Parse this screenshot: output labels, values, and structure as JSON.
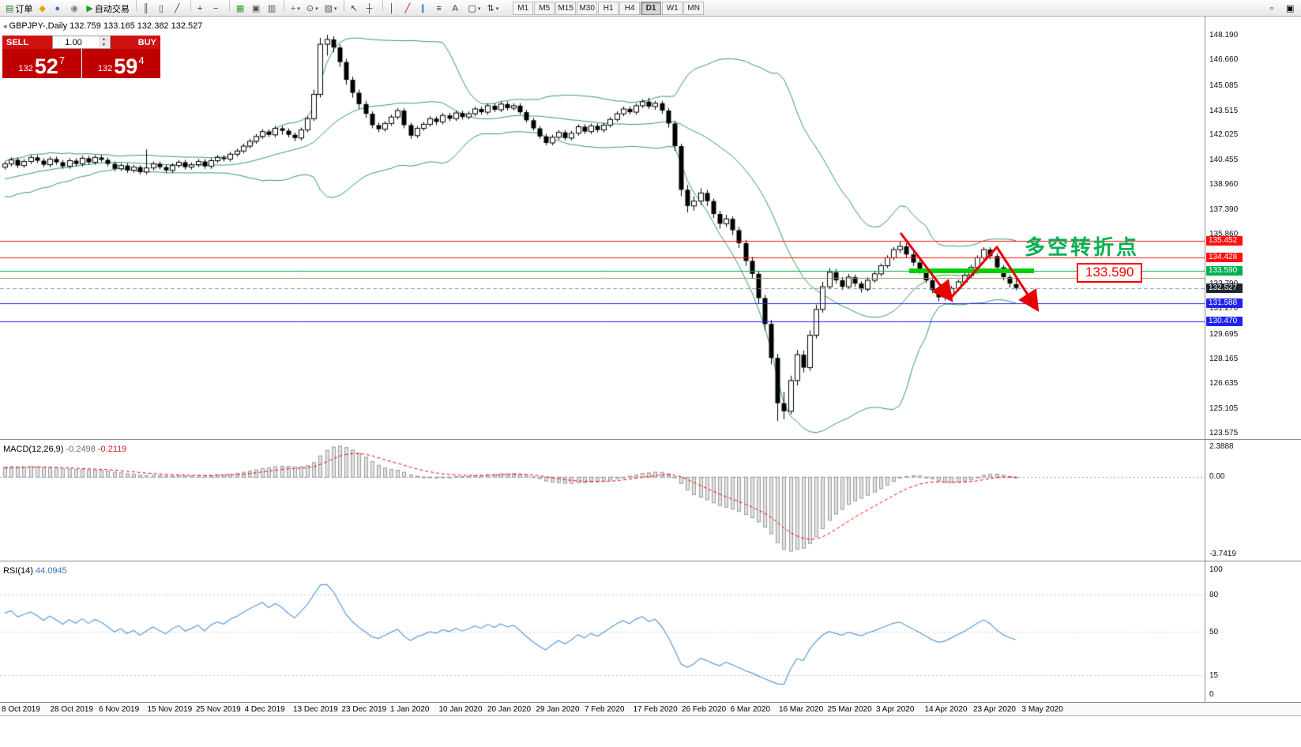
{
  "toolbar": {
    "groups": [
      {
        "items": [
          {
            "name": "new-order-button",
            "glyph": "▤",
            "color": "#2f7d32",
            "label": "订单"
          },
          {
            "name": "metaquotes-button",
            "glyph": "◆",
            "color": "#e2a400"
          },
          {
            "name": "market-watch-button",
            "glyph": "●",
            "color": "#3a6fc4"
          },
          {
            "name": "community-button",
            "glyph": "◉",
            "color": "#7a7a7a"
          },
          {
            "name": "autotrading-button",
            "glyph": "▶",
            "color": "#1d9e1d",
            "label": "自动交易"
          }
        ]
      },
      {
        "items": [
          {
            "name": "bar-chart-button",
            "glyph": "║",
            "color": "#444444"
          },
          {
            "name": "candlestick-chart-button",
            "glyph": "▯",
            "color": "#444444"
          },
          {
            "name": "line-chart-button",
            "glyph": "╱",
            "color": "#444444"
          }
        ]
      },
      {
        "items": [
          {
            "name": "zoom-in-button",
            "glyph": "+",
            "color": "#333333"
          },
          {
            "name": "zoom-out-button",
            "glyph": "−",
            "color": "#333333"
          }
        ]
      },
      {
        "items": [
          {
            "name": "tile-windows-button",
            "glyph": "▦",
            "color": "#2f9e2f"
          },
          {
            "name": "cascade-windows-button",
            "glyph": "▣",
            "color": "#555555"
          },
          {
            "name": "arrange-windows-button",
            "glyph": "▥",
            "color": "#555555"
          }
        ]
      },
      {
        "items": [
          {
            "name": "indicators-button",
            "glyph": "+",
            "color": "#1a9c1a",
            "caret": true
          },
          {
            "name": "periods-button",
            "glyph": "⊙",
            "color": "#555555",
            "caret": true
          },
          {
            "name": "templates-button",
            "glyph": "▨",
            "color": "#555555",
            "caret": true
          }
        ]
      },
      {
        "items": [
          {
            "name": "cursor-button",
            "glyph": "↖",
            "color": "#333333"
          },
          {
            "name": "crosshair-button",
            "glyph": "┼",
            "color": "#333333"
          }
        ]
      },
      {
        "items": [
          {
            "name": "vertical-line-button",
            "glyph": "│",
            "color": "#333333"
          },
          {
            "name": "trendline-button",
            "glyph": "╱",
            "color": "#cc0000"
          },
          {
            "name": "channel-button",
            "glyph": "∥",
            "color": "#0066cc"
          },
          {
            "name": "fibonacci-button",
            "glyph": "≡",
            "color": "#333333"
          },
          {
            "name": "text-button",
            "glyph": "A",
            "color": "#333333"
          },
          {
            "name": "shapes-button",
            "glyph": "▢",
            "color": "#333333",
            "caret": true
          },
          {
            "name": "arrows-button",
            "glyph": "⇅",
            "color": "#333333",
            "caret": true
          }
        ]
      }
    ],
    "timeframes": [
      "M1",
      "M5",
      "M15",
      "M30",
      "H1",
      "H4",
      "D1",
      "W1",
      "MN"
    ],
    "active_timeframe": "D1",
    "window_buttons": [
      {
        "name": "chart-minimize-button",
        "glyph": "▫"
      },
      {
        "name": "chart-restore-button",
        "glyph": "▣"
      }
    ]
  },
  "main_chart": {
    "header_icon": "◂",
    "symbol_header": "GBPJPY-,Daily 132.759 133.165 132.382 132.527",
    "trade_widget": {
      "sell_label": "SELL",
      "buy_label": "BUY",
      "volume": "1.00",
      "volume_up_glyph": "▲",
      "volume_down_glyph": "▼",
      "sell_price_small": "132",
      "sell_price_big": "52",
      "sell_price_sup": "7",
      "buy_price_small": "132",
      "buy_price_big": "59",
      "buy_price_sup": "4"
    },
    "annotation_text": "多空转折点",
    "support_callout": "133.590",
    "axis_values": [
      "148.190",
      "146.660",
      "145.085",
      "143.515",
      "142.025",
      "140.455",
      "138.960",
      "137.390",
      "135.860",
      "134.290",
      "132.790",
      "131.270",
      "129.695",
      "128.165",
      "126.635",
      "125.105",
      "123.575"
    ],
    "price_badges": [
      {
        "value": "135.452",
        "price": 135.452,
        "color": "#ff1010"
      },
      {
        "value": "134.428",
        "price": 134.428,
        "color": "#ff1010"
      },
      {
        "value": "133.590",
        "price": 133.59,
        "color": "#00b050"
      },
      {
        "value": "132.527",
        "price": 132.527,
        "color": "#20242c"
      },
      {
        "value": "131.588",
        "price": 131.588,
        "color": "#2222ee"
      },
      {
        "value": "130.470",
        "price": 130.47,
        "color": "#2222ee"
      }
    ]
  },
  "macd_panel": {
    "label": "MACD(12,26,9)",
    "value_main": "-0.2498",
    "value_signal": "-0.2119",
    "axis_top": "2.3888",
    "axis_zero": "0.00",
    "axis_bottom": "-3.7419"
  },
  "rsi_panel": {
    "label": "RSI(14)",
    "value": "44.0945",
    "axis_values": [
      "100",
      "80",
      "50",
      "15",
      "0"
    ],
    "levels": [
      80,
      50,
      15
    ]
  },
  "date_axis": [
    "8 Oct 2019",
    "28 Oct 2019",
    "6 Nov 2019",
    "15 Nov 2019",
    "25 Nov 2019",
    "4 Dec 2019",
    "13 Dec 2019",
    "23 Dec 2019",
    "1 Jan 2020",
    "10 Jan 2020",
    "20 Jan 2020",
    "29 Jan 2020",
    "7 Feb 2020",
    "17 Feb 2020",
    "26 Feb 2020",
    "6 Mar 2020",
    "16 Mar 2020",
    "25 Mar 2020",
    "3 Apr 2020",
    "14 Apr 2020",
    "23 Apr 2020",
    "3 May 2020"
  ],
  "chart_data": {
    "type": "candlestick",
    "symbol": "GBPJPY",
    "timeframe": "Daily",
    "price_range": [
      123.575,
      148.19
    ],
    "bollinger": {
      "period": 20,
      "deviation": 2,
      "color": "#2e9e5b"
    },
    "macd": {
      "fast": 12,
      "slow": 26,
      "signal": 9
    },
    "rsi": {
      "period": 14
    },
    "hlines": [
      {
        "price": 135.452,
        "color": "#ff1010",
        "style": "solid",
        "width": 1
      },
      {
        "price": 134.428,
        "color": "#ff1010",
        "style": "solid",
        "width": 1
      },
      {
        "price": 133.59,
        "color": "#00b050",
        "style": "solid",
        "width": 1
      },
      {
        "price": 133.155,
        "color": "#9a9a60",
        "style": "solid",
        "width": 1
      },
      {
        "price": 132.527,
        "color": "#8a98a6",
        "style": "dash",
        "width": 1
      },
      {
        "price": 131.588,
        "color": "#2222ee",
        "style": "solid",
        "width": 1
      },
      {
        "price": 130.47,
        "color": "#2222ee",
        "style": "solid",
        "width": 1
      }
    ],
    "candles": [
      [
        140.0,
        140.35,
        139.85,
        140.2
      ],
      [
        140.2,
        140.6,
        140.05,
        140.45
      ],
      [
        140.45,
        140.6,
        139.95,
        140.1
      ],
      [
        140.1,
        140.5,
        139.95,
        140.35
      ],
      [
        140.35,
        140.75,
        140.2,
        140.6
      ],
      [
        140.6,
        140.75,
        140.25,
        140.4
      ],
      [
        140.4,
        140.55,
        140.0,
        140.15
      ],
      [
        140.15,
        140.65,
        140.0,
        140.5
      ],
      [
        140.5,
        140.65,
        140.15,
        140.3
      ],
      [
        140.3,
        140.45,
        139.9,
        140.05
      ],
      [
        140.05,
        140.55,
        139.9,
        140.4
      ],
      [
        140.4,
        140.55,
        140.05,
        140.2
      ],
      [
        140.2,
        140.7,
        140.05,
        140.55
      ],
      [
        140.55,
        140.7,
        140.15,
        140.3
      ],
      [
        140.3,
        140.75,
        140.15,
        140.6
      ],
      [
        140.6,
        140.75,
        140.3,
        140.45
      ],
      [
        140.45,
        140.6,
        140.05,
        140.2
      ],
      [
        140.2,
        140.35,
        139.75,
        139.9
      ],
      [
        139.9,
        140.25,
        139.75,
        140.1
      ],
      [
        140.1,
        140.25,
        139.65,
        139.8
      ],
      [
        139.8,
        140.15,
        139.65,
        140.0
      ],
      [
        140.0,
        140.1,
        139.55,
        139.7
      ],
      [
        139.7,
        141.1,
        139.55,
        139.95
      ],
      [
        139.95,
        140.35,
        139.8,
        140.2
      ],
      [
        140.2,
        140.35,
        139.85,
        140.0
      ],
      [
        140.0,
        140.15,
        139.65,
        139.8
      ],
      [
        139.8,
        140.25,
        139.65,
        140.1
      ],
      [
        140.1,
        140.45,
        139.95,
        140.3
      ],
      [
        140.3,
        140.45,
        139.85,
        140.0
      ],
      [
        140.0,
        140.3,
        139.85,
        140.15
      ],
      [
        140.15,
        140.5,
        140.0,
        140.35
      ],
      [
        140.35,
        140.5,
        139.9,
        140.05
      ],
      [
        140.05,
        140.55,
        139.9,
        140.4
      ],
      [
        140.4,
        140.75,
        140.25,
        140.6
      ],
      [
        140.6,
        140.75,
        140.35,
        140.5
      ],
      [
        140.5,
        140.95,
        140.35,
        140.8
      ],
      [
        140.8,
        141.15,
        140.65,
        141.0
      ],
      [
        141.0,
        141.45,
        140.85,
        141.3
      ],
      [
        141.3,
        141.75,
        141.15,
        141.6
      ],
      [
        141.6,
        142.05,
        141.45,
        141.9
      ],
      [
        141.9,
        142.35,
        141.75,
        142.2
      ],
      [
        142.2,
        142.35,
        141.85,
        142.0
      ],
      [
        142.0,
        142.55,
        141.85,
        142.4
      ],
      [
        142.4,
        142.55,
        142.0,
        142.25
      ],
      [
        142.25,
        142.4,
        141.85,
        142.0
      ],
      [
        142.0,
        142.15,
        141.6,
        141.8
      ],
      [
        141.8,
        142.45,
        141.65,
        142.3
      ],
      [
        142.3,
        143.15,
        142.15,
        143.0
      ],
      [
        143.0,
        144.8,
        142.85,
        144.5
      ],
      [
        144.5,
        148.0,
        144.3,
        147.6
      ],
      [
        147.6,
        148.19,
        146.9,
        147.9
      ],
      [
        147.9,
        148.1,
        147.1,
        147.4
      ],
      [
        147.4,
        147.6,
        146.2,
        146.5
      ],
      [
        146.5,
        146.7,
        145.1,
        145.4
      ],
      [
        145.4,
        145.6,
        144.3,
        144.6
      ],
      [
        144.6,
        144.8,
        143.6,
        143.9
      ],
      [
        143.9,
        144.1,
        143.05,
        143.3
      ],
      [
        143.3,
        143.45,
        142.4,
        142.6
      ],
      [
        142.6,
        142.75,
        142.15,
        142.35
      ],
      [
        142.35,
        142.85,
        142.2,
        142.7
      ],
      [
        142.7,
        143.25,
        142.55,
        143.1
      ],
      [
        143.1,
        143.65,
        142.95,
        143.5
      ],
      [
        143.5,
        143.65,
        142.4,
        142.6
      ],
      [
        142.6,
        142.75,
        141.75,
        141.95
      ],
      [
        141.95,
        142.55,
        141.8,
        142.4
      ],
      [
        142.4,
        142.8,
        142.25,
        142.65
      ],
      [
        142.65,
        143.15,
        142.5,
        143.0
      ],
      [
        143.0,
        143.15,
        142.6,
        142.8
      ],
      [
        142.8,
        143.35,
        142.65,
        143.2
      ],
      [
        143.2,
        143.35,
        142.85,
        143.0
      ],
      [
        143.0,
        143.5,
        142.85,
        143.35
      ],
      [
        143.35,
        143.5,
        142.95,
        143.1
      ],
      [
        143.1,
        143.45,
        142.95,
        143.3
      ],
      [
        143.3,
        143.75,
        143.15,
        143.6
      ],
      [
        143.6,
        143.75,
        143.25,
        143.4
      ],
      [
        143.4,
        143.95,
        143.25,
        143.8
      ],
      [
        143.8,
        143.95,
        143.4,
        143.55
      ],
      [
        143.55,
        144.05,
        143.4,
        143.9
      ],
      [
        143.9,
        144.05,
        143.5,
        143.65
      ],
      [
        143.65,
        143.95,
        143.5,
        143.8
      ],
      [
        143.8,
        143.95,
        143.25,
        143.4
      ],
      [
        143.4,
        143.55,
        142.75,
        142.9
      ],
      [
        142.9,
        143.05,
        142.25,
        142.4
      ],
      [
        142.4,
        142.55,
        141.75,
        141.9
      ],
      [
        141.9,
        142.05,
        141.35,
        141.5
      ],
      [
        141.5,
        142.0,
        141.35,
        141.85
      ],
      [
        141.85,
        142.3,
        141.7,
        142.15
      ],
      [
        142.15,
        142.3,
        141.65,
        141.8
      ],
      [
        141.8,
        142.25,
        141.65,
        142.1
      ],
      [
        142.1,
        142.65,
        141.95,
        142.5
      ],
      [
        142.5,
        142.65,
        142.05,
        142.2
      ],
      [
        142.2,
        142.7,
        142.05,
        142.55
      ],
      [
        142.55,
        142.7,
        142.15,
        142.3
      ],
      [
        142.3,
        142.75,
        142.15,
        142.6
      ],
      [
        142.6,
        143.1,
        142.45,
        142.95
      ],
      [
        142.95,
        143.45,
        142.8,
        143.3
      ],
      [
        143.3,
        143.75,
        143.15,
        143.6
      ],
      [
        143.6,
        143.75,
        143.25,
        143.4
      ],
      [
        143.4,
        143.95,
        143.25,
        143.8
      ],
      [
        143.8,
        144.2,
        143.65,
        144.05
      ],
      [
        144.05,
        144.3,
        143.6,
        143.75
      ],
      [
        143.75,
        144.1,
        143.55,
        143.95
      ],
      [
        143.95,
        144.1,
        143.3,
        143.5
      ],
      [
        143.5,
        143.65,
        142.45,
        142.7
      ],
      [
        142.7,
        142.85,
        141.0,
        141.3
      ],
      [
        141.3,
        141.45,
        138.2,
        138.6
      ],
      [
        138.6,
        138.9,
        137.2,
        137.6
      ],
      [
        137.6,
        138.2,
        137.3,
        137.9
      ],
      [
        137.9,
        138.7,
        137.65,
        138.4
      ],
      [
        138.4,
        138.6,
        137.6,
        137.9
      ],
      [
        137.9,
        138.05,
        136.85,
        137.1
      ],
      [
        137.1,
        137.3,
        136.2,
        136.5
      ],
      [
        136.5,
        137.05,
        136.3,
        136.8
      ],
      [
        136.8,
        136.95,
        135.8,
        136.1
      ],
      [
        136.1,
        136.3,
        135.0,
        135.3
      ],
      [
        135.3,
        135.5,
        133.9,
        134.2
      ],
      [
        134.2,
        134.45,
        133.1,
        133.4
      ],
      [
        133.4,
        133.6,
        131.55,
        131.9
      ],
      [
        131.9,
        132.1,
        129.9,
        130.3
      ],
      [
        130.3,
        130.55,
        127.8,
        128.2
      ],
      [
        128.2,
        128.45,
        124.3,
        125.4
      ],
      [
        125.4,
        126.1,
        124.4,
        124.9
      ],
      [
        124.9,
        127.1,
        124.7,
        126.8
      ],
      [
        126.8,
        128.7,
        126.5,
        128.4
      ],
      [
        128.4,
        128.65,
        127.3,
        127.6
      ],
      [
        127.6,
        129.9,
        127.4,
        129.6
      ],
      [
        129.6,
        131.5,
        129.4,
        131.2
      ],
      [
        131.2,
        132.9,
        131.0,
        132.6
      ],
      [
        132.6,
        133.75,
        132.45,
        133.5
      ],
      [
        133.5,
        133.7,
        132.8,
        133.0
      ],
      [
        133.0,
        133.2,
        132.4,
        132.6
      ],
      [
        132.6,
        133.4,
        132.45,
        133.2
      ],
      [
        133.2,
        133.35,
        132.6,
        132.8
      ],
      [
        132.8,
        132.95,
        132.25,
        132.45
      ],
      [
        132.45,
        133.2,
        132.3,
        133.0
      ],
      [
        133.0,
        133.55,
        132.85,
        133.4
      ],
      [
        133.4,
        134.05,
        133.25,
        133.9
      ],
      [
        133.9,
        134.55,
        133.75,
        134.4
      ],
      [
        134.4,
        135.05,
        134.25,
        134.9
      ],
      [
        134.9,
        135.45,
        134.7,
        135.1
      ],
      [
        135.1,
        135.3,
        134.4,
        134.6
      ],
      [
        134.6,
        134.75,
        133.9,
        134.1
      ],
      [
        134.1,
        134.25,
        133.4,
        133.6
      ],
      [
        133.6,
        133.75,
        132.85,
        133.0
      ],
      [
        133.0,
        133.15,
        132.2,
        132.4
      ],
      [
        132.4,
        132.55,
        131.7,
        131.95
      ],
      [
        131.95,
        132.3,
        131.75,
        132.1
      ],
      [
        132.1,
        132.65,
        131.95,
        132.5
      ],
      [
        132.5,
        133.05,
        132.35,
        132.9
      ],
      [
        132.9,
        133.45,
        132.75,
        133.3
      ],
      [
        133.3,
        133.95,
        133.15,
        133.8
      ],
      [
        133.8,
        134.55,
        133.65,
        134.4
      ],
      [
        134.4,
        135.05,
        134.25,
        134.9
      ],
      [
        134.9,
        135.05,
        134.3,
        134.5
      ],
      [
        134.5,
        134.65,
        133.6,
        133.8
      ],
      [
        133.8,
        133.95,
        133.0,
        133.2
      ],
      [
        133.2,
        133.35,
        132.55,
        132.8
      ],
      [
        132.76,
        133.17,
        132.38,
        132.53
      ]
    ]
  }
}
